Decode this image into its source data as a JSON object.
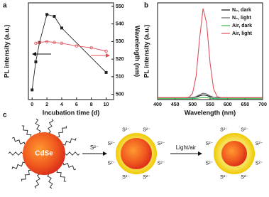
{
  "chart_data": [
    {
      "type": "line",
      "panel": "a",
      "xlabel": "Incubation time (d)",
      "ylabel": "PL intensity (a.u.)",
      "y2label": "Wavelength (nm)",
      "xlim": [
        -0.5,
        11
      ],
      "xticks": [
        0,
        2,
        4,
        6,
        8,
        10
      ],
      "ylim": [
        0,
        100
      ],
      "y2lim": [
        497,
        552
      ],
      "y2ticks": [
        500,
        510,
        520,
        530,
        540,
        550
      ],
      "series": [
        {
          "color": "#222222",
          "marker": "square",
          "x": [
            0,
            0.5,
            1,
            2,
            3,
            4,
            10
          ],
          "values": [
            10,
            39,
            59,
            88,
            86,
            74,
            28
          ]
        },
        {
          "color": "#e0505a",
          "marker": "circle",
          "axis": "y2",
          "x": [
            0.5,
            1,
            2,
            3,
            4,
            6,
            8,
            10
          ],
          "values": [
            529,
            529.5,
            530,
            529.5,
            529,
            527.5,
            526.5,
            524.5
          ]
        }
      ]
    },
    {
      "type": "line",
      "panel": "b",
      "xlabel": "Wavelength (nm)",
      "ylabel": "PL intensity (a.u.)",
      "xlim": [
        400,
        700
      ],
      "xticks": [
        400,
        450,
        500,
        550,
        600,
        650,
        700
      ],
      "ylim": [
        0,
        105
      ],
      "legend": "upper right",
      "x": [
        400,
        410,
        420,
        430,
        440,
        450,
        460,
        470,
        480,
        490,
        500,
        510,
        520,
        530,
        540,
        550,
        560,
        570,
        580,
        590,
        600,
        610,
        620,
        630,
        640,
        650,
        660,
        670,
        680,
        690,
        700
      ],
      "series": [
        {
          "name": "N₂, dark",
          "color": "#111111",
          "values": [
            2,
            2,
            2,
            2,
            2,
            2,
            2,
            2,
            2,
            2,
            2.1,
            2.7,
            4,
            5,
            4.5,
            3.1,
            2.3,
            2,
            2,
            2,
            2,
            2,
            2,
            2,
            2,
            2,
            2,
            2,
            2,
            2,
            2
          ]
        },
        {
          "name": "N₂, light",
          "color": "#666666",
          "values": [
            2,
            2,
            2,
            2,
            2,
            2,
            2,
            2,
            2,
            2,
            2.2,
            3.2,
            5.3,
            6.9,
            6.1,
            3.9,
            2.5,
            2.1,
            2,
            2,
            2,
            2,
            2,
            2,
            2,
            2,
            2,
            2,
            2,
            2,
            2
          ]
        },
        {
          "name": "Air, dark",
          "color": "#3cb44b",
          "values": [
            1,
            1,
            1,
            1,
            1,
            1,
            1,
            1,
            1,
            1,
            1.1,
            1.3,
            1.8,
            2.2,
            2,
            1.5,
            1.1,
            1,
            1,
            1,
            1,
            1,
            1,
            1,
            1,
            1,
            1,
            1,
            1,
            1,
            1
          ]
        },
        {
          "name": "Air, light",
          "color": "#e0505a",
          "values": [
            2,
            2,
            2,
            2,
            2,
            2,
            2,
            2,
            2,
            2.5,
            6.7,
            25.4,
            66,
            98.8,
            83,
            39.5,
            11.6,
            3.4,
            2.1,
            2,
            2,
            2,
            2,
            2,
            2,
            2,
            2,
            2,
            2,
            2,
            2
          ]
        }
      ]
    }
  ],
  "diagram": {
    "panel": "c",
    "core_label": "CdSe",
    "step1_label": "S²⁻",
    "step2_label": "Light/air",
    "shell_labels_1": [
      "S²⁻",
      "S²⁻",
      "S²⁻",
      "S²⁻",
      "S²⁻",
      "S²⁻",
      "S²⁻",
      "S²⁻"
    ],
    "shell_labels_2": [
      "S²⁻",
      "S²⁻",
      "S²⁻",
      "S²⁻",
      "S²⁻",
      "S²⁻",
      "S²⁻",
      "S²⁻"
    ]
  }
}
